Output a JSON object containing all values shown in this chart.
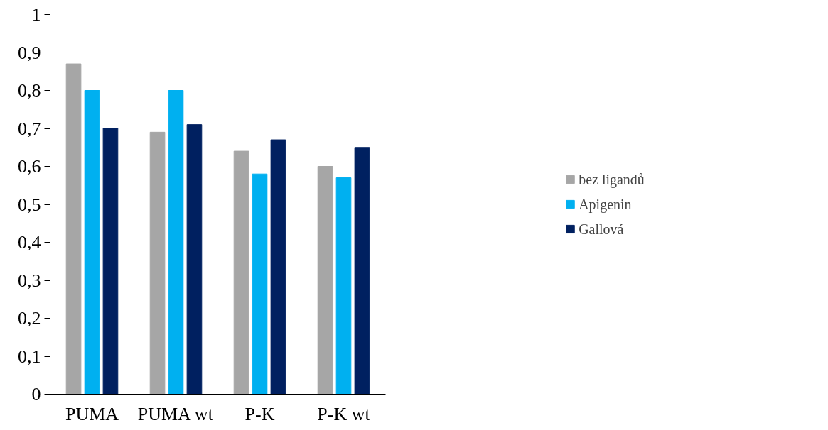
{
  "chart_data": {
    "type": "bar",
    "categories": [
      "PUMA",
      "PUMA wt",
      "P-K",
      "P-K wt"
    ],
    "series": [
      {
        "name": "bez ligandů",
        "color": "#a6a6a6",
        "values": [
          0.87,
          0.69,
          0.64,
          0.6
        ]
      },
      {
        "name": "Apigenin",
        "color": "#00b0f0",
        "values": [
          0.8,
          0.8,
          0.58,
          0.57
        ]
      },
      {
        "name": "Gallová",
        "color": "#002060",
        "values": [
          0.7,
          0.71,
          0.67,
          0.65
        ]
      }
    ],
    "ylim": [
      0,
      1
    ],
    "yticks": [
      0,
      {
        "value": 0.1,
        "label": "0,1"
      },
      {
        "value": 0.2,
        "label": "0,2"
      },
      {
        "value": 0.3,
        "label": "0,3"
      },
      {
        "value": 0.4,
        "label": "0,4"
      },
      {
        "value": 0.5,
        "label": "0,5"
      },
      {
        "value": 0.6,
        "label": "0,6"
      },
      {
        "value": 0.7,
        "label": "0,7"
      },
      {
        "value": 0.8,
        "label": "0,8"
      },
      {
        "value": 0.9,
        "label": "0,9"
      },
      1
    ],
    "grid": false,
    "legend": "right"
  }
}
